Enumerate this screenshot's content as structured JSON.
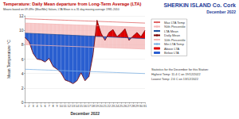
{
  "chart_data": {
    "type": "line",
    "title": "Temperature: Daily Mean departure from Long-Term Average (LTA)",
    "subtitle": "Means based on 09-09hr (Max/Min) Values, LTA Mean is a 31 day moving average 1981-2010",
    "station": "SHERKIN ISLAND Co. Cork",
    "period": "December 2022",
    "notes": [
      "Statistics for the December for this Station:",
      "Highest Temp: 11.4 C on 19/12/2022",
      "Lowest Temp: 2.6 C on 13/12/2022"
    ],
    "x_label": "December 2022",
    "y_label": "Mean Temperature °C",
    "x": [
      1,
      2,
      3,
      4,
      5,
      6,
      7,
      8,
      9,
      10,
      11,
      12,
      13,
      14,
      15,
      16,
      17,
      18,
      19,
      20,
      21,
      22,
      23,
      24,
      25,
      26,
      27,
      28,
      29,
      30,
      31
    ],
    "xlim": [
      1,
      31
    ],
    "xticks": [
      1,
      2,
      3,
      4,
      5,
      6,
      7,
      8,
      9,
      10,
      11,
      12,
      13,
      14,
      15,
      16,
      17,
      18,
      19,
      20,
      21,
      22,
      23,
      24,
      25,
      26,
      27,
      28,
      29,
      30,
      31
    ],
    "ylim": [
      0,
      12
    ],
    "yticks": [
      0,
      2,
      4,
      6,
      8,
      10,
      12
    ],
    "grid": true,
    "legend": "right",
    "series": [
      {
        "name": "Max LTA Temp",
        "color": "#e06666",
        "values": [
          11.6,
          11.58,
          11.56,
          11.54,
          11.52,
          11.5,
          11.48,
          11.46,
          11.44,
          11.42,
          11.4,
          11.38,
          11.36,
          11.34,
          11.32,
          11.3,
          11.28,
          11.26,
          11.24,
          11.22,
          11.2,
          11.18,
          11.16,
          11.14,
          11.12,
          11.1,
          11.08,
          11.06,
          11.04,
          11.02,
          11.0
        ]
      },
      {
        "name": "90th Percentile",
        "color": "#f4b6b6",
        "values": [
          11.0,
          10.98,
          10.96,
          10.94,
          10.92,
          10.9,
          10.88,
          10.86,
          10.84,
          10.82,
          10.8,
          10.78,
          10.76,
          10.74,
          10.72,
          10.7,
          10.68,
          10.66,
          10.64,
          10.62,
          10.6,
          10.58,
          10.56,
          10.54,
          10.52,
          10.5,
          10.48,
          10.46,
          10.44,
          10.42,
          10.4
        ]
      },
      {
        "name": "LTA Mean",
        "color": "#1f4e9c",
        "values": [
          9.6,
          9.58,
          9.55,
          9.53,
          9.5,
          9.48,
          9.45,
          9.43,
          9.4,
          9.38,
          9.35,
          9.33,
          9.3,
          9.28,
          9.25,
          9.23,
          9.2,
          9.18,
          9.15,
          9.13,
          9.1,
          9.08,
          9.05,
          9.03,
          9.0,
          8.98,
          8.95,
          8.93,
          8.9,
          8.88,
          8.85
        ]
      },
      {
        "name": "Daily Mean",
        "color": "#7a0000",
        "values": [
          9.0,
          8.4,
          6.8,
          6.0,
          5.9,
          5.6,
          6.1,
          5.0,
          4.6,
          4.1,
          3.1,
          2.9,
          2.6,
          3.0,
          4.1,
          3.0,
          3.6,
          6.6,
          11.4,
          9.6,
          8.6,
          9.7,
          10.1,
          9.1,
          9.6,
          10.2,
          8.6,
          9.2,
          9.7,
          9.1,
          10.0
        ]
      },
      {
        "name": "10th Percentile",
        "color": "#f4b6b6",
        "values": [
          8.0,
          7.98,
          7.96,
          7.94,
          7.92,
          7.9,
          7.88,
          7.86,
          7.84,
          7.82,
          7.8,
          7.78,
          7.76,
          7.74,
          7.72,
          7.7,
          7.68,
          7.66,
          7.64,
          7.62,
          7.6,
          7.58,
          7.56,
          7.54,
          7.52,
          7.5,
          7.48,
          7.46,
          7.44,
          7.42,
          7.4
        ]
      },
      {
        "name": "Min LTA Temp",
        "color": "#7fb2e5",
        "values": [
          4.6,
          4.58,
          4.56,
          4.54,
          4.52,
          4.5,
          4.48,
          4.46,
          4.44,
          4.42,
          4.4,
          4.38,
          4.36,
          4.34,
          4.32,
          4.3,
          4.28,
          4.26,
          4.24,
          4.22,
          4.2,
          4.18,
          4.16,
          4.14,
          4.12,
          4.1,
          4.08,
          4.06,
          4.04,
          4.02,
          4.0
        ]
      },
      {
        "name": "Above LTA",
        "color": "#dd0000",
        "type": "fill"
      },
      {
        "name": "Below LTA",
        "color": "#2a5fd0",
        "type": "fill"
      }
    ]
  }
}
